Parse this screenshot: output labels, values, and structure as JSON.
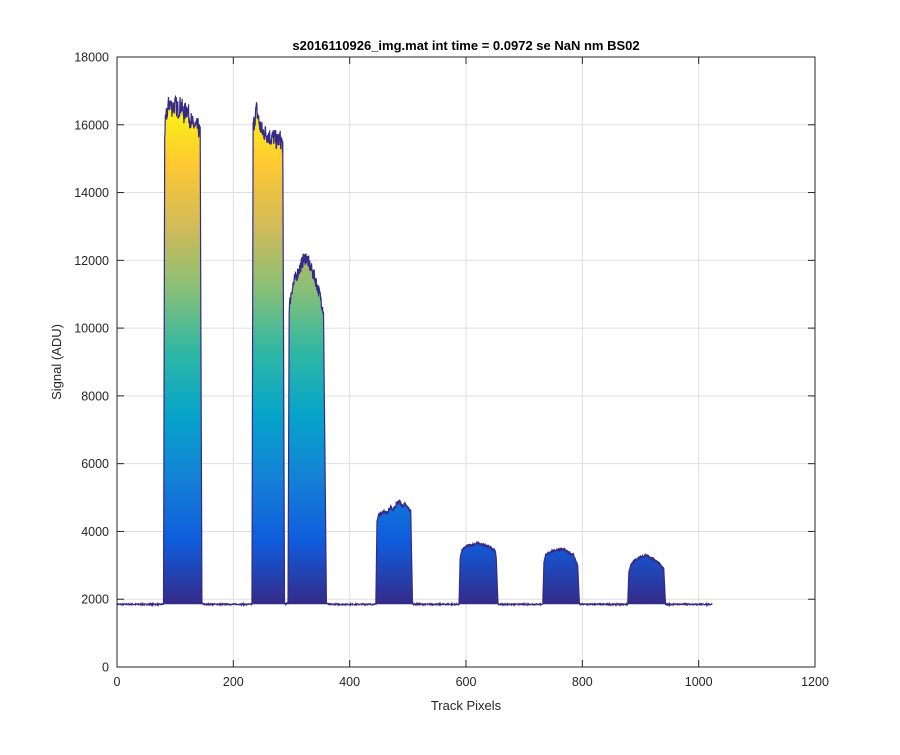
{
  "chart_data": {
    "type": "area",
    "title": "s2016110926_img.mat int time = 0.0972 se  NaN nm BS02",
    "xlabel": "Track Pixels",
    "ylabel": "Signal (ADU)",
    "xlim": [
      0,
      1200
    ],
    "ylim": [
      0,
      18000
    ],
    "xticks": [
      0,
      200,
      400,
      600,
      800,
      1000,
      1200
    ],
    "yticks": [
      0,
      2000,
      4000,
      6000,
      8000,
      10000,
      12000,
      14000,
      16000,
      18000
    ],
    "grid": true,
    "colormap": "parula",
    "colormap_colors": [
      "#352a87",
      "#0f5cdd",
      "#1481d6",
      "#06a4ca",
      "#2eb7a4",
      "#87bf77",
      "#d1bb59",
      "#fec832",
      "#f9fb0e"
    ],
    "baseline": 1850,
    "x_end": 1023,
    "series": [
      {
        "x": [
          0,
          80,
          82,
          86,
          90,
          95,
          100,
          105,
          110,
          115,
          120,
          125,
          130,
          135,
          140,
          143,
          146,
          148,
          232,
          234,
          238,
          240,
          245,
          250,
          255,
          260,
          265,
          270,
          275,
          280,
          285,
          288,
          290,
          294,
          296,
          300,
          305,
          310,
          315,
          320,
          325,
          330,
          335,
          340,
          345,
          350,
          355,
          360,
          363,
          445,
          447,
          450,
          455,
          460,
          465,
          470,
          475,
          480,
          485,
          490,
          495,
          500,
          505,
          508,
          510,
          588,
          590,
          593,
          600,
          610,
          620,
          630,
          640,
          650,
          652,
          655,
          732,
          734,
          737,
          745,
          755,
          765,
          775,
          785,
          792,
          795,
          878,
          880,
          883,
          890,
          900,
          910,
          920,
          930,
          940,
          943,
          946,
          1023
        ],
        "y": [
          1850,
          1850,
          15800,
          16400,
          16650,
          16500,
          16600,
          16450,
          16600,
          16300,
          16500,
          16200,
          16000,
          15950,
          15900,
          15700,
          1900,
          1850,
          1850,
          15900,
          16300,
          16450,
          16000,
          15800,
          15750,
          15700,
          15600,
          15650,
          15500,
          15600,
          15400,
          1900,
          1850,
          1900,
          10600,
          11100,
          11400,
          11600,
          11800,
          12000,
          12100,
          11900,
          11700,
          11500,
          11200,
          10900,
          10500,
          1900,
          1850,
          1850,
          4300,
          4500,
          4550,
          4600,
          4550,
          4700,
          4650,
          4800,
          4900,
          4750,
          4800,
          4700,
          4600,
          1900,
          1850,
          1850,
          3200,
          3450,
          3550,
          3600,
          3650,
          3600,
          3550,
          3450,
          3200,
          1850,
          1850,
          3100,
          3300,
          3400,
          3450,
          3480,
          3400,
          3300,
          3000,
          1850,
          1850,
          2800,
          3000,
          3150,
          3250,
          3300,
          3200,
          3100,
          2900,
          1850,
          1850,
          1850
        ]
      }
    ]
  }
}
